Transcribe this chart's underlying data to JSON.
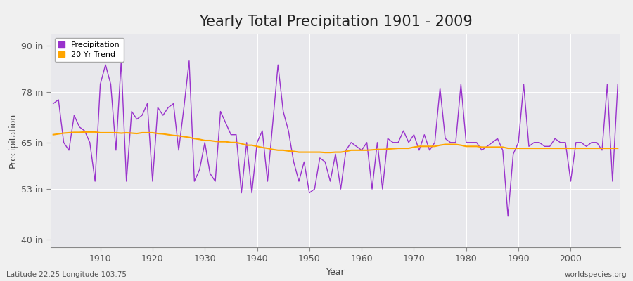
{
  "title": "Yearly Total Precipitation 1901 - 2009",
  "xlabel": "Year",
  "ylabel": "Precipitation",
  "x_start": 1901,
  "x_end": 2009,
  "yticks": [
    40,
    53,
    65,
    78,
    90
  ],
  "ytick_labels": [
    "40 in",
    "53 in",
    "65 in",
    "78 in",
    "90 in"
  ],
  "ylim": [
    38,
    93
  ],
  "xlim": [
    1900.5,
    2009.5
  ],
  "precipitation_color": "#9932CC",
  "trend_color": "#FFA500",
  "background_color": "#f0f0f0",
  "plot_bg_color": "#e8e8ec",
  "grid_color": "#ffffff",
  "title_fontsize": 15,
  "label_fontsize": 9,
  "tick_fontsize": 9,
  "legend_labels": [
    "Precipitation",
    "20 Yr Trend"
  ],
  "footer_left": "Latitude 22.25 Longitude 103.75",
  "footer_right": "worldspecies.org",
  "precipitation": [
    75,
    76,
    65,
    63,
    72,
    69,
    68,
    65,
    55,
    80,
    85,
    80,
    63,
    86,
    55,
    73,
    71,
    72,
    75,
    55,
    74,
    72,
    74,
    75,
    63,
    74,
    86,
    55,
    58,
    65,
    57,
    55,
    73,
    70,
    67,
    67,
    52,
    65,
    52,
    65,
    68,
    55,
    70,
    85,
    73,
    68,
    60,
    55,
    60,
    52,
    53,
    61,
    60,
    55,
    62,
    53,
    63,
    65,
    64,
    63,
    65,
    53,
    65,
    53,
    66,
    65,
    65,
    68,
    65,
    67,
    63,
    67,
    63,
    65,
    79,
    66,
    65,
    65,
    80,
    65,
    65,
    65,
    63,
    64,
    65,
    66,
    63,
    46,
    62,
    65,
    80,
    64,
    65,
    65,
    64,
    64,
    66,
    65,
    65,
    55,
    65,
    65,
    64,
    65,
    65,
    63,
    80,
    55,
    80
  ],
  "trend": [
    67.0,
    67.2,
    67.4,
    67.5,
    67.6,
    67.6,
    67.7,
    67.7,
    67.7,
    67.5,
    67.5,
    67.5,
    67.5,
    67.4,
    67.5,
    67.4,
    67.3,
    67.5,
    67.5,
    67.5,
    67.3,
    67.2,
    67.0,
    66.8,
    66.7,
    66.5,
    66.3,
    66.0,
    65.8,
    65.5,
    65.5,
    65.3,
    65.2,
    65.2,
    65.0,
    65.0,
    64.7,
    64.3,
    64.3,
    64.0,
    63.7,
    63.5,
    63.2,
    63.0,
    63.0,
    62.8,
    62.7,
    62.5,
    62.5,
    62.5,
    62.5,
    62.5,
    62.4,
    62.4,
    62.5,
    62.5,
    62.7,
    63.0,
    63.0,
    63.0,
    63.0,
    63.1,
    63.2,
    63.2,
    63.3,
    63.4,
    63.5,
    63.5,
    63.5,
    63.8,
    64.0,
    64.0,
    64.0,
    64.0,
    64.3,
    64.5,
    64.5,
    64.5,
    64.3,
    64.0,
    64.0,
    64.0,
    63.8,
    63.8,
    63.8,
    63.8,
    63.8,
    63.5,
    63.5,
    63.5,
    63.5,
    63.5,
    63.5,
    63.5,
    63.5,
    63.5,
    63.5,
    63.5,
    63.5,
    63.5,
    63.5,
    63.5,
    63.5,
    63.5,
    63.5,
    63.5,
    63.5,
    63.5,
    63.5
  ]
}
